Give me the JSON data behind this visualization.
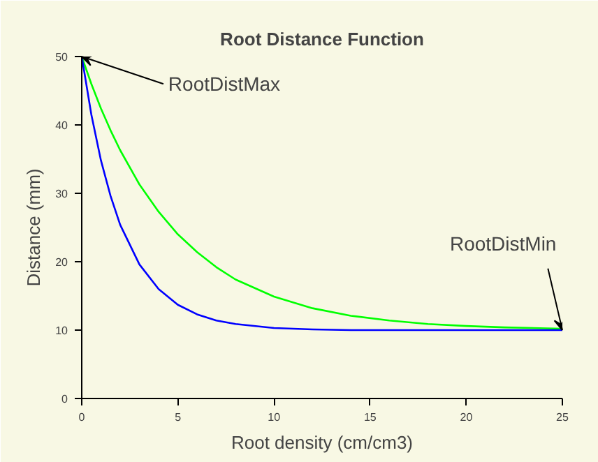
{
  "chart_data": {
    "type": "line",
    "title": "Root Distance Function",
    "xlabel": "Root density (cm/cm3)",
    "ylabel": "Distance (mm)",
    "x": [
      0,
      0.5,
      1,
      1.5,
      2,
      3,
      4,
      5,
      6,
      7,
      8,
      10,
      12,
      14,
      16,
      18,
      20,
      22,
      25
    ],
    "series": [
      {
        "color": "#00ff00",
        "values": [
          50,
          46.0,
          42.4,
          39.2,
          36.3,
          31.3,
          27.3,
          24.0,
          21.4,
          19.2,
          17.4,
          14.9,
          13.2,
          12.1,
          11.4,
          10.9,
          10.6,
          10.4,
          10.2
        ]
      },
      {
        "color": "#0000ff",
        "values": [
          50,
          41.5,
          34.8,
          29.6,
          25.4,
          19.6,
          16.0,
          13.7,
          12.3,
          11.4,
          10.9,
          10.3,
          10.1,
          10.0,
          10.0,
          10.0,
          10.0,
          10.0,
          10.0
        ]
      }
    ],
    "xlim": [
      0,
      25
    ],
    "ylim": [
      0,
      50
    ],
    "xticks": [
      0,
      5,
      10,
      15,
      20,
      25
    ],
    "yticks": [
      0,
      10,
      20,
      30,
      40,
      50
    ],
    "grid": false,
    "marker": "none",
    "line_style": "solid",
    "annotations": [
      {
        "text": "RootDistMax",
        "x": 0,
        "y": 50
      },
      {
        "text": "RootDistMin",
        "x": 25,
        "y": 10
      }
    ]
  }
}
